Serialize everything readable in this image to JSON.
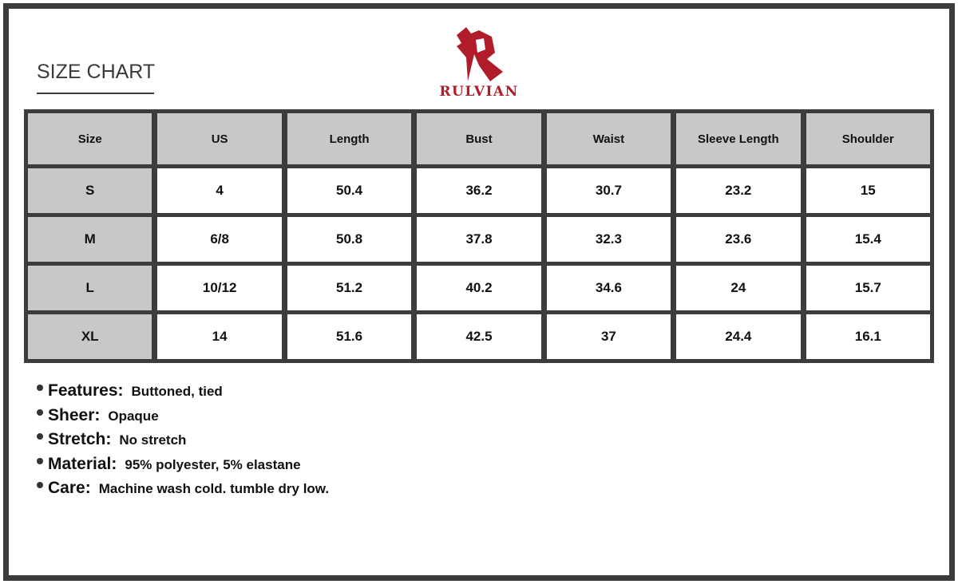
{
  "header": {
    "title": "SIZE CHART"
  },
  "brand": {
    "name": "RULVIAN",
    "color": "#b01c2a",
    "logo_icon": "stylized-r-logo"
  },
  "table": {
    "columns": [
      "Size",
      "US",
      "Length",
      "Bust",
      "Waist",
      "Sleeve Length",
      "Shoulder"
    ],
    "rows": [
      [
        "S",
        "4",
        "50.4",
        "36.2",
        "30.7",
        "23.2",
        "15"
      ],
      [
        "M",
        "6/8",
        "50.8",
        "37.8",
        "32.3",
        "23.6",
        "15.4"
      ],
      [
        "L",
        "10/12",
        "51.2",
        "40.2",
        "34.6",
        "24",
        "15.7"
      ],
      [
        "XL",
        "14",
        "51.6",
        "42.5",
        "37",
        "24.4",
        "16.1"
      ]
    ]
  },
  "features": [
    {
      "label": "Features:",
      "value": "Buttoned, tied"
    },
    {
      "label": "Sheer:",
      "value": "Opaque"
    },
    {
      "label": "Stretch:",
      "value": "No stretch"
    },
    {
      "label": "Material:",
      "value": "95% polyester, 5% elastane"
    },
    {
      "label": "Care:",
      "value": "Machine wash cold. tumble dry low."
    }
  ]
}
